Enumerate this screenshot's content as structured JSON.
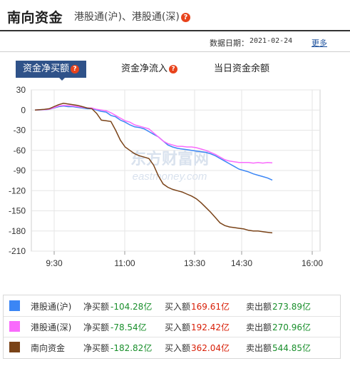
{
  "header": {
    "title": "南向资金",
    "subtitle": "港股通(沪)、港股通(深)",
    "help_glyph": "?"
  },
  "date_bar": {
    "label": "数据日期：",
    "value": "2021-02-24",
    "more_label": "更多"
  },
  "tabs": [
    {
      "label": "资金净买额",
      "active": true,
      "help": "?"
    },
    {
      "label": "资金净流入",
      "active": false,
      "help": "?"
    },
    {
      "label": "当日资金余额",
      "active": false
    }
  ],
  "watermark": {
    "line1": "东方财富网",
    "line2": "eastmoney.com"
  },
  "chart_data": {
    "type": "line",
    "x_labels": [
      "9:30",
      "11:00",
      "13:30",
      "14:30",
      "16:00"
    ],
    "y_ticks": [
      30,
      0,
      -30,
      -60,
      -90,
      -120,
      -150,
      -180,
      -210
    ],
    "ylim": [
      -210,
      30
    ],
    "grid": true,
    "series": [
      {
        "name": "港股通(沪)",
        "color": "#3b86f5",
        "values": [
          0,
          0.3,
          0.5,
          1,
          3,
          5,
          6,
          5,
          5,
          4,
          3,
          2,
          2,
          0,
          -2,
          -3,
          -8,
          -10,
          -15,
          -18,
          -22,
          -25,
          -26,
          -28,
          -32,
          -36,
          -40,
          -46,
          -52,
          -55,
          -57,
          -58,
          -59,
          -60,
          -61,
          -62,
          -63,
          -65,
          -68,
          -72,
          -76,
          -80,
          -84,
          -88,
          -90,
          -92,
          -95,
          -97,
          -99,
          -101,
          -104.28
        ]
      },
      {
        "name": "港股通(深)",
        "color": "#f96bfc",
        "values": [
          0,
          0.4,
          0.7,
          1.2,
          3.5,
          6,
          7,
          6.5,
          6,
          5,
          4,
          3,
          3,
          1,
          0,
          -1,
          -4,
          -8,
          -12,
          -16,
          -18,
          -22,
          -24,
          -26,
          -28,
          -34,
          -40,
          -46,
          -50,
          -52,
          -54,
          -54,
          -55,
          -55,
          -56,
          -58,
          -60,
          -63,
          -66,
          -70,
          -74,
          -76,
          -77,
          -78,
          -78,
          -78,
          -79,
          -78,
          -79,
          -78,
          -78.54
        ]
      },
      {
        "name": "南向资金",
        "color": "#7a4318",
        "values": [
          0,
          0.5,
          1,
          2,
          5,
          8,
          10,
          9,
          8,
          7,
          5,
          3,
          2,
          -5,
          -15,
          -16,
          -17,
          -30,
          -45,
          -55,
          -60,
          -65,
          -68,
          -70,
          -72,
          -82,
          -98,
          -110,
          -115,
          -118,
          -120,
          -122,
          -125,
          -128,
          -132,
          -138,
          -145,
          -152,
          -160,
          -168,
          -172,
          -174,
          -175,
          -176,
          -177,
          -179,
          -180,
          -180,
          -181,
          -182,
          -182.82
        ]
      }
    ]
  },
  "legend": [
    {
      "name": "港股通(沪)",
      "color": "#3b86f5",
      "net_label": "净买额",
      "net_value": "-104.28亿",
      "buy_label": "买入额",
      "buy_value": "169.61亿",
      "sell_label": "卖出额",
      "sell_value": "273.89亿"
    },
    {
      "name": "港股通(深)",
      "color": "#f96bfc",
      "net_label": "净买额",
      "net_value": "-78.54亿",
      "buy_label": "买入额",
      "buy_value": "192.42亿",
      "sell_label": "卖出额",
      "sell_value": "270.96亿"
    },
    {
      "name": "南向资金",
      "color": "#7a4318",
      "net_label": "净买额",
      "net_value": "-182.82亿",
      "buy_label": "买入额",
      "buy_value": "362.04亿",
      "sell_label": "卖出额",
      "sell_value": "544.85亿"
    }
  ]
}
